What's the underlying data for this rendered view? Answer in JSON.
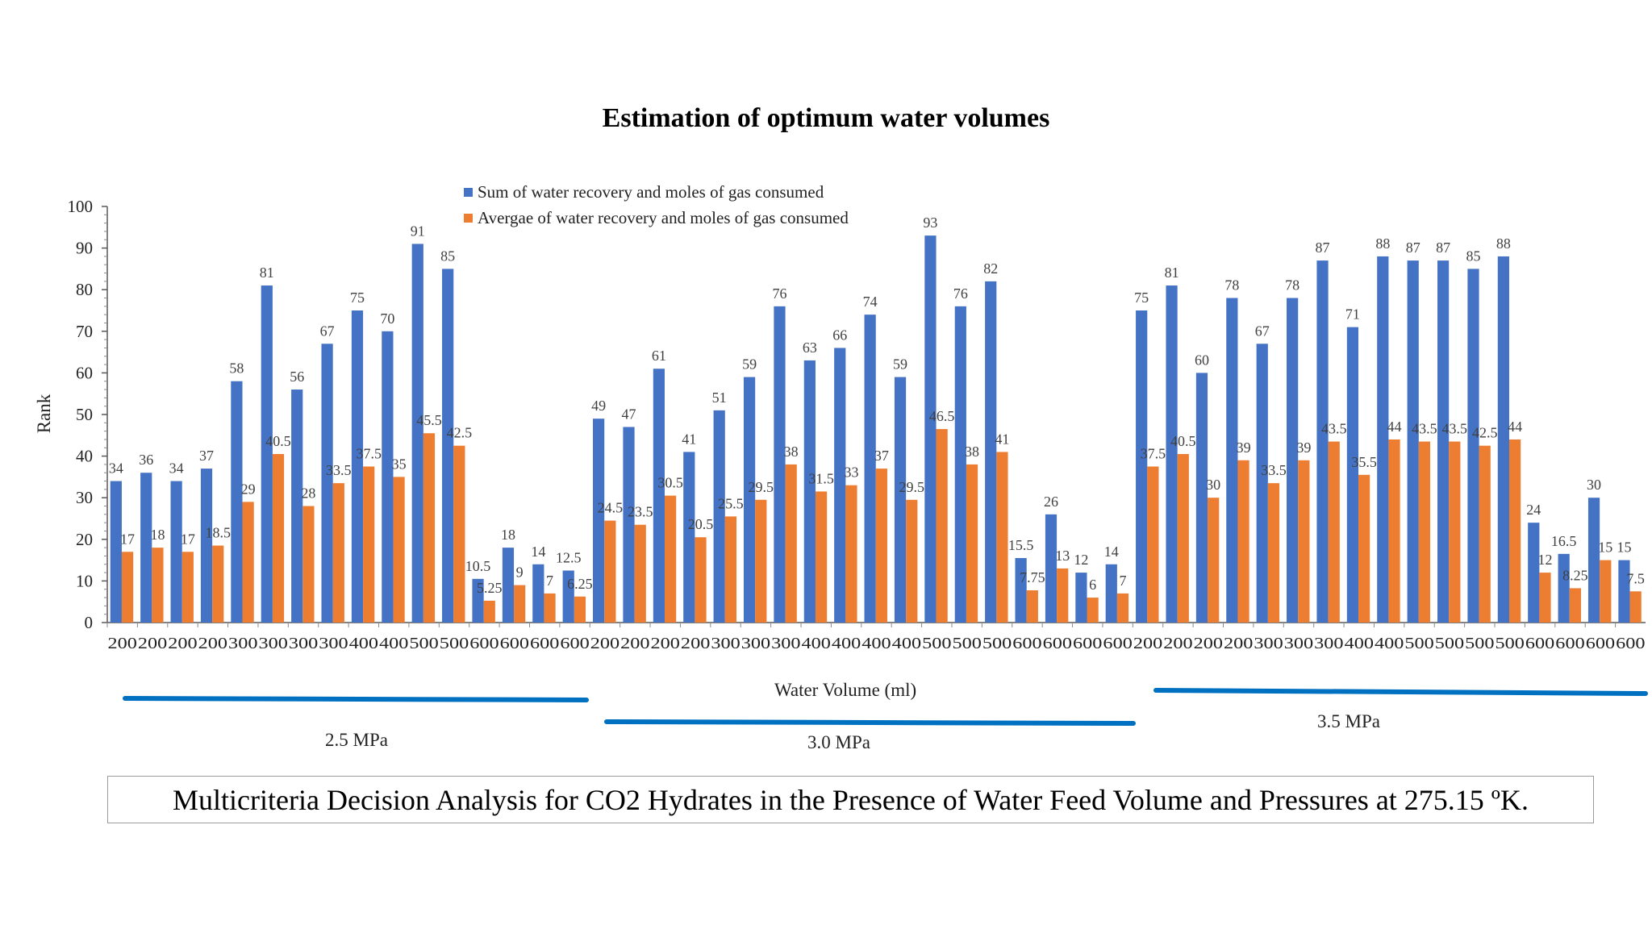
{
  "chart_data": {
    "type": "bar",
    "title": "Estimation of optimum water volumes",
    "xlabel": "Water Volume (ml)",
    "ylabel": "Rank",
    "ylim": [
      0,
      100
    ],
    "yticks": [
      0,
      10,
      20,
      30,
      40,
      50,
      60,
      70,
      80,
      90,
      100
    ],
    "legend_position": "top-center",
    "grid": false,
    "categories": [
      "200",
      "200",
      "200",
      "200",
      "300",
      "300",
      "300",
      "300",
      "400",
      "400",
      "500",
      "500",
      "600",
      "600",
      "600",
      "600",
      "200",
      "200",
      "200",
      "200",
      "300",
      "300",
      "300",
      "400",
      "400",
      "400",
      "400",
      "500",
      "500",
      "500",
      "600",
      "600",
      "600",
      "600",
      "200",
      "200",
      "200",
      "200",
      "300",
      "300",
      "300",
      "400",
      "400",
      "500",
      "500",
      "500",
      "500",
      "600",
      "600",
      "600",
      "600"
    ],
    "series": [
      {
        "name": "Sum of water recovery and moles of gas consumed",
        "color": "#4472C4",
        "values": [
          34,
          36,
          34,
          37,
          58,
          81,
          56,
          67,
          75,
          70,
          91,
          85,
          10.5,
          18,
          14,
          12.5,
          49,
          47,
          61,
          41,
          51,
          59,
          76,
          63,
          66,
          74,
          59,
          93,
          76,
          82,
          15.5,
          26,
          12,
          14,
          75,
          81,
          60,
          78,
          67,
          78,
          87,
          71,
          88,
          87,
          87,
          85,
          88,
          24,
          16.5,
          30,
          15
        ],
        "labels": [
          "34",
          "36",
          "34",
          "37",
          "58",
          "81",
          "56",
          "67",
          "75",
          "70",
          "91",
          "85",
          "10.5",
          "18",
          "14",
          "12.5",
          "49",
          "47",
          "61",
          "41",
          "51",
          "59",
          "76",
          "63",
          "66",
          "74",
          "59",
          "93",
          "76",
          "82",
          "15.5",
          "26",
          "12",
          "14",
          "75",
          "81",
          "60",
          "78",
          "67",
          "78",
          "87",
          "71",
          "88",
          "87",
          "87",
          "85",
          "88",
          "24",
          "16.5",
          "30",
          "15"
        ]
      },
      {
        "name": "Avergae of water recovery and moles of gas consumed",
        "color": "#ED7D31",
        "values": [
          17,
          18,
          17,
          18.5,
          29,
          40.5,
          28,
          33.5,
          37.5,
          35,
          45.5,
          42.5,
          5.25,
          9,
          7,
          6.25,
          24.5,
          23.5,
          30.5,
          20.5,
          25.5,
          29.5,
          38,
          31.5,
          33,
          37,
          29.5,
          46.5,
          38,
          41,
          7.75,
          13,
          6,
          7,
          37.5,
          40.5,
          30,
          39,
          33.5,
          39,
          43.5,
          35.5,
          44,
          43.5,
          43.5,
          42.5,
          44,
          12,
          8.25,
          15,
          7.5
        ],
        "labels": [
          "17",
          "18",
          "17",
          "18.5",
          "29",
          "40.5",
          "28",
          "33.5",
          "37.5",
          "35",
          "45.5",
          "42.5",
          "5.25",
          "9",
          "7",
          "6.25",
          "24.5",
          "23.5",
          "30.5",
          "20.5",
          "25.5",
          "29.5",
          "38",
          "31.5",
          "33",
          "37",
          "29.5",
          "46.5",
          "38",
          "41",
          "7.75",
          "13",
          "6",
          "7",
          "37.5",
          "40.5",
          "30",
          "39",
          "33.5",
          "39",
          "43.5",
          "35.5",
          "44",
          "43.5",
          "43.5",
          "42.5",
          "44",
          "12",
          "8.25",
          "15",
          "7.5"
        ]
      }
    ],
    "groups": [
      {
        "label": "2.5 MPa",
        "line_color": "#0070C0"
      },
      {
        "label": "3.0 MPa",
        "line_color": "#0070C0"
      },
      {
        "label": "3.5 MPa",
        "line_color": "#0070C0"
      }
    ]
  },
  "caption": "Multicriteria Decision Analysis for CO2 Hydrates in the Presence of Water Feed Volume and Pressures at 275.15 ºK."
}
